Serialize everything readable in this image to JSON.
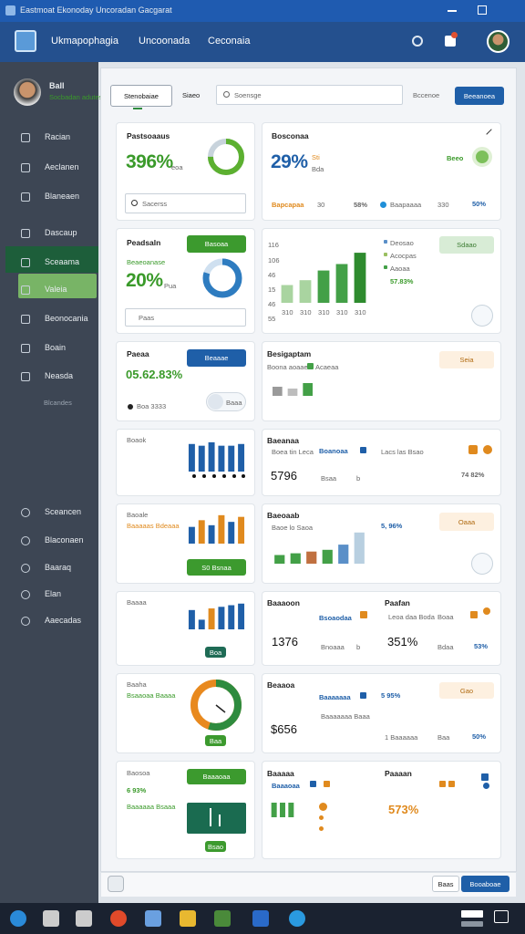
{
  "window": {
    "title": "Eastmoat Ekonoday Uncoradan Gacgarat"
  },
  "header": {
    "app": "Ukmapophagia",
    "nav": [
      "Uncoonada",
      "Ceconaia"
    ]
  },
  "user": {
    "name": "Ball",
    "role": "Socbadan adutes"
  },
  "sidebar": {
    "items": [
      "Racian",
      "Aeclanen",
      "Blaneaen",
      "Dascaup",
      "Sceaama",
      "Valeia",
      "Beonocania",
      "Boain",
      "Neasda"
    ],
    "section": "Blcandes",
    "bottom": [
      "Sceancen",
      "Blaconaen",
      "Baaraq",
      "Elan",
      "Aaecadas"
    ]
  },
  "toolbar": {
    "tab": "Stenobaiae",
    "link": "Siaeo",
    "search": "Soensge",
    "filter": "Bccenoe",
    "button": "Beeanoea"
  },
  "cards": [
    {
      "texts": [
        "Pastsoaaus",
        "396%",
        "eoa",
        "Sacerss"
      ]
    },
    {
      "texts": [
        "Bosconaa",
        "29%",
        "Sti",
        "Bda",
        "Beeo",
        "Bapcapaa",
        "30",
        "58%",
        "Baapaaaa",
        "330",
        "50%"
      ]
    },
    {
      "texts": [
        "Peadsaln",
        "Basoaa",
        "Beaeoanase",
        "20%",
        "Pua",
        "Paas"
      ]
    },
    {
      "texts": [
        "116",
        "106",
        "46",
        "15",
        "46",
        "55",
        "Deosao",
        "Acocpas",
        "Aaoaa",
        "57.83%",
        "Sdaao"
      ]
    },
    {
      "texts": [
        "Paeaa",
        "05.62.83%",
        "Beaaae",
        "Boa 3333",
        "Baaa"
      ]
    },
    {
      "texts": [
        "Besigaptam",
        "Boona aoaaes",
        "Acaeaa",
        "Seia"
      ]
    },
    {
      "texts": [
        "Boaok"
      ]
    },
    {
      "texts": [
        "Baeanaa",
        "Boea tin Leca",
        "Boanoaa",
        "Lacs las Bsao",
        "5796",
        "Bsaa",
        "b",
        "74 82%"
      ]
    },
    {
      "texts": [
        "Baoale",
        "Baaaaas Bdeaaa",
        "S0 Bsnaa"
      ]
    },
    {
      "texts": [
        "Baeoaab",
        "Baoe lo Saoa",
        "5, 96%",
        "Oaaa"
      ]
    },
    {
      "texts": [
        "Baaaa",
        "Boa"
      ]
    },
    {
      "texts": [
        "Baaaoon",
        "Bsoaodaa",
        "1376",
        "Bnoaaa",
        "b",
        "Paafan",
        "Leoa daa Boda",
        "Boaa",
        "351%",
        "Bdaa",
        "53%"
      ]
    },
    {
      "texts": [
        "Baaha",
        "Bsaaoaa Baaaa",
        "Baa"
      ]
    },
    {
      "texts": [
        "Beaaoa",
        "Baaaaaaa",
        "5 95%",
        "$656",
        "Baaaaaaa Baaa",
        "Gao",
        "1 Baaaaaa",
        "Baa",
        "50%"
      ]
    },
    {
      "texts": [
        "Baosoa",
        "Baaaoaa",
        "6 93%",
        "Baaaaaa Bsaaa",
        "Bsao"
      ]
    },
    {
      "texts": [
        "Baaaaa",
        "Baaaoaa",
        "Paaaan",
        "573%"
      ]
    }
  ],
  "charts": [
    {
      "values": [
        22,
        28,
        40,
        48,
        62
      ],
      "colors": [
        "#a9d4a0",
        "#a9d4a0",
        "#43a047",
        "#43a047",
        "#2e8b2e"
      ],
      "categories": [
        "310",
        "310",
        "310",
        "310",
        "310"
      ],
      "ylim": [
        0,
        70
      ]
    },
    {
      "values": [
        32,
        30,
        34,
        30,
        30,
        32
      ],
      "colors": [
        "#1f5fa8",
        "#1f5fa8",
        "#1f5fa8",
        "#1f5fa8",
        "#1f5fa8",
        "#1f5fa8"
      ],
      "ylim": [
        0,
        36
      ]
    },
    {
      "values": [
        20,
        28,
        22,
        34,
        26,
        32
      ],
      "colors": [
        "#1f5fa8",
        "#e08a1e",
        "#1f5fa8",
        "#e08a1e",
        "#1f5fa8",
        "#e08a1e"
      ],
      "ylim": [
        0,
        36
      ]
    },
    {
      "values": [
        10,
        12,
        14,
        16,
        22,
        36
      ],
      "colors": [
        "#43a047",
        "#43a047",
        "#c07040",
        "#43a047",
        "#5a8fc8",
        "#b8cfe0"
      ],
      "ylim": [
        0,
        40
      ]
    },
    {
      "values": [
        24,
        12,
        26,
        28,
        30,
        32
      ],
      "colors": [
        "#1f5fa8",
        "#1f5fa8",
        "#e08a1e",
        "#1f5fa8",
        "#1f5fa8",
        "#1f5fa8"
      ],
      "ylim": [
        0,
        34
      ]
    },
    {
      "values": [
        16,
        16,
        16
      ],
      "colors": [
        "#43a047",
        "#43a047",
        "#43a047"
      ],
      "ylim": [
        0,
        16
      ]
    },
    {
      "values": [
        10,
        8,
        14
      ],
      "colors": [
        "#9a9a9a",
        "#bdbdbd",
        "#43a047"
      ],
      "ylim": [
        0,
        16
      ]
    }
  ],
  "donuts": [
    {
      "value": 75,
      "color": "#5cb030",
      "track": "#c8d3dc"
    },
    {
      "value": 80,
      "color": "#2e7cc0",
      "track": "#cfe0f0"
    },
    {
      "value": 55,
      "color": "#2e8b3e",
      "track": "#e8891e"
    }
  ],
  "footer": {
    "secondary": "Baas",
    "primary": "Booaboae"
  }
}
